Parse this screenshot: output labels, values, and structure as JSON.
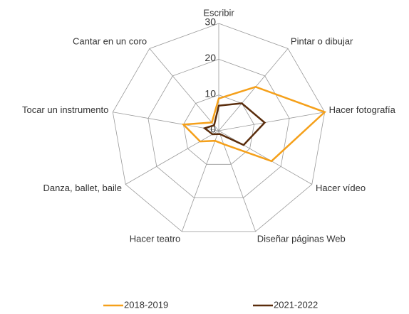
{
  "chart_data": {
    "type": "radar",
    "categories": [
      "Escribir",
      "Pintar o dibujar",
      "Hacer fotografía",
      "Hacer vídeo",
      "Diseñar páginas Web",
      "Hacer teatro",
      "Danza, ballet, baile",
      "Tocar un instrumento",
      "Cantar en un coro"
    ],
    "series": [
      {
        "name": "2018-2019",
        "color": "#f5a01a",
        "values": [
          9,
          16,
          30,
          17,
          4,
          3,
          6,
          10,
          3
        ]
      },
      {
        "name": "2021-2022",
        "color": "#5a2d0c",
        "values": [
          7,
          10,
          13,
          8,
          1,
          1,
          2,
          4,
          2
        ]
      }
    ],
    "ylim": [
      0,
      30
    ],
    "yticks": [
      0,
      10,
      20,
      30
    ],
    "grid": true,
    "legend": "bottom"
  }
}
